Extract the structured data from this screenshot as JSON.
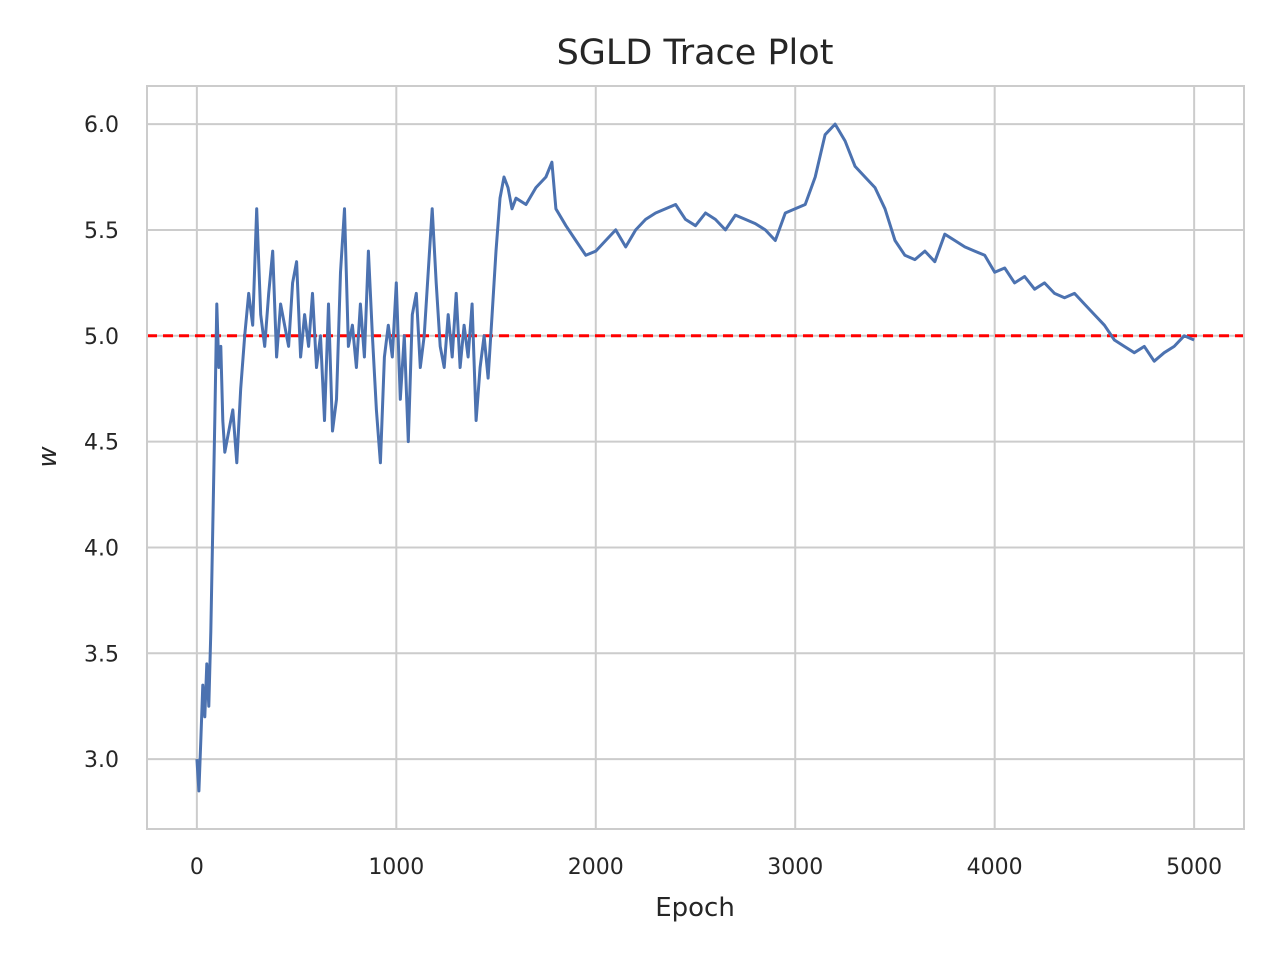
{
  "chart_data": {
    "type": "line",
    "title": "SGLD Trace Plot",
    "xlabel": "Epoch",
    "ylabel": "w",
    "xlim": [
      -250,
      5250
    ],
    "ylim": [
      2.67,
      6.18
    ],
    "x_ticks": [
      0,
      1000,
      2000,
      3000,
      4000,
      5000
    ],
    "x_tick_labels": [
      "0",
      "1000",
      "2000",
      "3000",
      "4000",
      "5000"
    ],
    "y_ticks": [
      3.0,
      3.5,
      4.0,
      4.5,
      5.0,
      5.5,
      6.0
    ],
    "y_tick_labels": [
      "3.0",
      "3.5",
      "4.0",
      "4.5",
      "5.0",
      "5.5",
      "6.0"
    ],
    "grid": true,
    "series": [
      {
        "color": "#4c72b0",
        "x": [
          0,
          10,
          20,
          30,
          40,
          50,
          60,
          70,
          80,
          90,
          100,
          110,
          120,
          130,
          140,
          160,
          180,
          200,
          220,
          240,
          260,
          280,
          300,
          320,
          340,
          360,
          380,
          400,
          420,
          440,
          460,
          480,
          500,
          520,
          540,
          560,
          580,
          600,
          620,
          640,
          660,
          680,
          700,
          720,
          740,
          760,
          780,
          800,
          820,
          840,
          860,
          880,
          900,
          920,
          940,
          960,
          980,
          1000,
          1020,
          1040,
          1060,
          1080,
          1100,
          1120,
          1140,
          1160,
          1180,
          1200,
          1220,
          1240,
          1260,
          1280,
          1300,
          1320,
          1340,
          1360,
          1380,
          1400,
          1420,
          1440,
          1460,
          1480,
          1500,
          1520,
          1540,
          1560,
          1580,
          1600,
          1650,
          1700,
          1750,
          1780,
          1800,
          1850,
          1900,
          1950,
          2000,
          2050,
          2100,
          2150,
          2200,
          2250,
          2300,
          2350,
          2400,
          2450,
          2500,
          2550,
          2600,
          2650,
          2700,
          2750,
          2800,
          2850,
          2900,
          2950,
          3000,
          3050,
          3100,
          3150,
          3200,
          3250,
          3300,
          3350,
          3400,
          3450,
          3500,
          3550,
          3600,
          3650,
          3700,
          3750,
          3800,
          3850,
          3900,
          3950,
          4000,
          4050,
          4100,
          4150,
          4200,
          4250,
          4300,
          4350,
          4400,
          4450,
          4500,
          4550,
          4600,
          4650,
          4700,
          4750,
          4800,
          4850,
          4900,
          4950,
          5000
        ],
        "y": [
          3.0,
          2.85,
          3.1,
          3.35,
          3.2,
          3.45,
          3.25,
          3.6,
          4.1,
          4.6,
          5.15,
          4.85,
          4.95,
          4.6,
          4.45,
          4.55,
          4.65,
          4.4,
          4.75,
          5.0,
          5.2,
          5.05,
          5.6,
          5.1,
          4.95,
          5.2,
          5.4,
          4.9,
          5.15,
          5.05,
          4.95,
          5.25,
          5.35,
          4.9,
          5.1,
          4.95,
          5.2,
          4.85,
          5.0,
          4.6,
          5.15,
          4.55,
          4.7,
          5.3,
          5.6,
          4.95,
          5.05,
          4.85,
          5.15,
          4.9,
          5.4,
          5.0,
          4.65,
          4.4,
          4.9,
          5.05,
          4.9,
          5.25,
          4.7,
          5.0,
          4.5,
          5.1,
          5.2,
          4.85,
          5.0,
          5.3,
          5.6,
          5.25,
          4.95,
          4.85,
          5.1,
          4.9,
          5.2,
          4.85,
          5.05,
          4.9,
          5.15,
          4.6,
          4.85,
          5.0,
          4.8,
          5.1,
          5.4,
          5.65,
          5.75,
          5.7,
          5.6,
          5.65,
          5.62,
          5.7,
          5.75,
          5.82,
          5.6,
          5.52,
          5.45,
          5.38,
          5.4,
          5.45,
          5.5,
          5.42,
          5.5,
          5.55,
          5.58,
          5.6,
          5.62,
          5.55,
          5.52,
          5.58,
          5.55,
          5.5,
          5.57,
          5.55,
          5.53,
          5.5,
          5.45,
          5.58,
          5.6,
          5.62,
          5.75,
          5.95,
          6.0,
          5.92,
          5.8,
          5.75,
          5.7,
          5.6,
          5.45,
          5.38,
          5.36,
          5.4,
          5.35,
          5.48,
          5.45,
          5.42,
          5.4,
          5.38,
          5.3,
          5.32,
          5.25,
          5.28,
          5.22,
          5.25,
          5.2,
          5.18,
          5.2,
          5.15,
          5.1,
          5.05,
          4.98,
          4.95,
          4.92,
          4.95,
          4.88,
          4.92,
          4.95,
          5.0,
          4.98
        ]
      }
    ],
    "reference_lines": [
      {
        "axis": "y",
        "value": 5.0,
        "style": "dashed",
        "color": "#ff0000"
      }
    ]
  }
}
